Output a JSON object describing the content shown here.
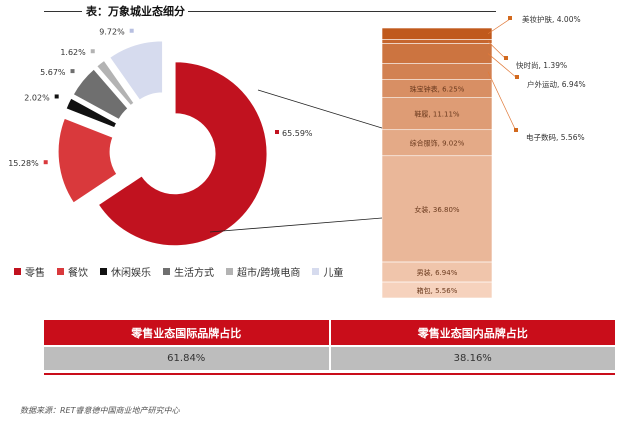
{
  "title": "表：万象城业态细分",
  "colors": {
    "retail": "#c1121f",
    "dining": "#d9393c",
    "leisure": "#111111",
    "lifestyle": "#6f6f6f",
    "supermarket": "#b3b3b3",
    "kids": "#d6dbee",
    "bar_dark": "#c0591c",
    "bar_light": "#f6d2bd",
    "table_header": "#c90d1a",
    "table_cell": "#bdbdbd"
  },
  "chart_data": [
    {
      "type": "pie",
      "donut": true,
      "exploded": true,
      "slices": [
        {
          "name": "零售",
          "label": "65.59%",
          "value": 65.59
        },
        {
          "name": "餐饮",
          "label": "15.28%",
          "value": 15.28
        },
        {
          "name": "休闲娱乐",
          "label": "2.02%",
          "value": 2.02
        },
        {
          "name": "生活方式",
          "label": "5.67%",
          "value": 5.67
        },
        {
          "name": "超市/跨境电商",
          "label": "1.62%",
          "value": 1.62
        },
        {
          "name": "儿童",
          "label": "9.72%",
          "value": 9.72
        }
      ],
      "legend_position": "bottom"
    },
    {
      "type": "bar",
      "stacked": true,
      "segments": [
        {
          "name": "箱包",
          "label": "箱包, 5.56%",
          "value": 5.56,
          "callout": false
        },
        {
          "name": "男装",
          "label": "男装, 6.94%",
          "value": 6.94,
          "callout": false
        },
        {
          "name": "女装",
          "label": "女装, 36.80%",
          "value": 36.8,
          "callout": false
        },
        {
          "name": "综合服饰",
          "label": "综合服饰, 9.02%",
          "value": 9.02,
          "callout": false
        },
        {
          "name": "鞋履",
          "label": "鞋履, 11.11%",
          "value": 11.11,
          "callout": false
        },
        {
          "name": "珠宝钟表",
          "label": "珠宝钟表, 6.25%",
          "value": 6.25,
          "callout": false
        },
        {
          "name": "电子数码",
          "label": "电子数码, 5.56%",
          "value": 5.56,
          "callout": true
        },
        {
          "name": "户外运动",
          "label": "户外运动, 6.94%",
          "value": 6.94,
          "callout": true
        },
        {
          "name": "快时尚",
          "label": "快时尚, 1.39%",
          "value": 1.39,
          "callout": true
        },
        {
          "name": "美妆护肤",
          "label": "美妆护肤, 4.00%",
          "value": 4.0,
          "callout": true
        }
      ]
    }
  ],
  "table": {
    "headers": [
      "零售业态国际品牌占比",
      "零售业态国内品牌占比"
    ],
    "values": [
      "61.84%",
      "38.16%"
    ]
  },
  "source": "数据来源：RET睿意德中国商业地产研究中心"
}
